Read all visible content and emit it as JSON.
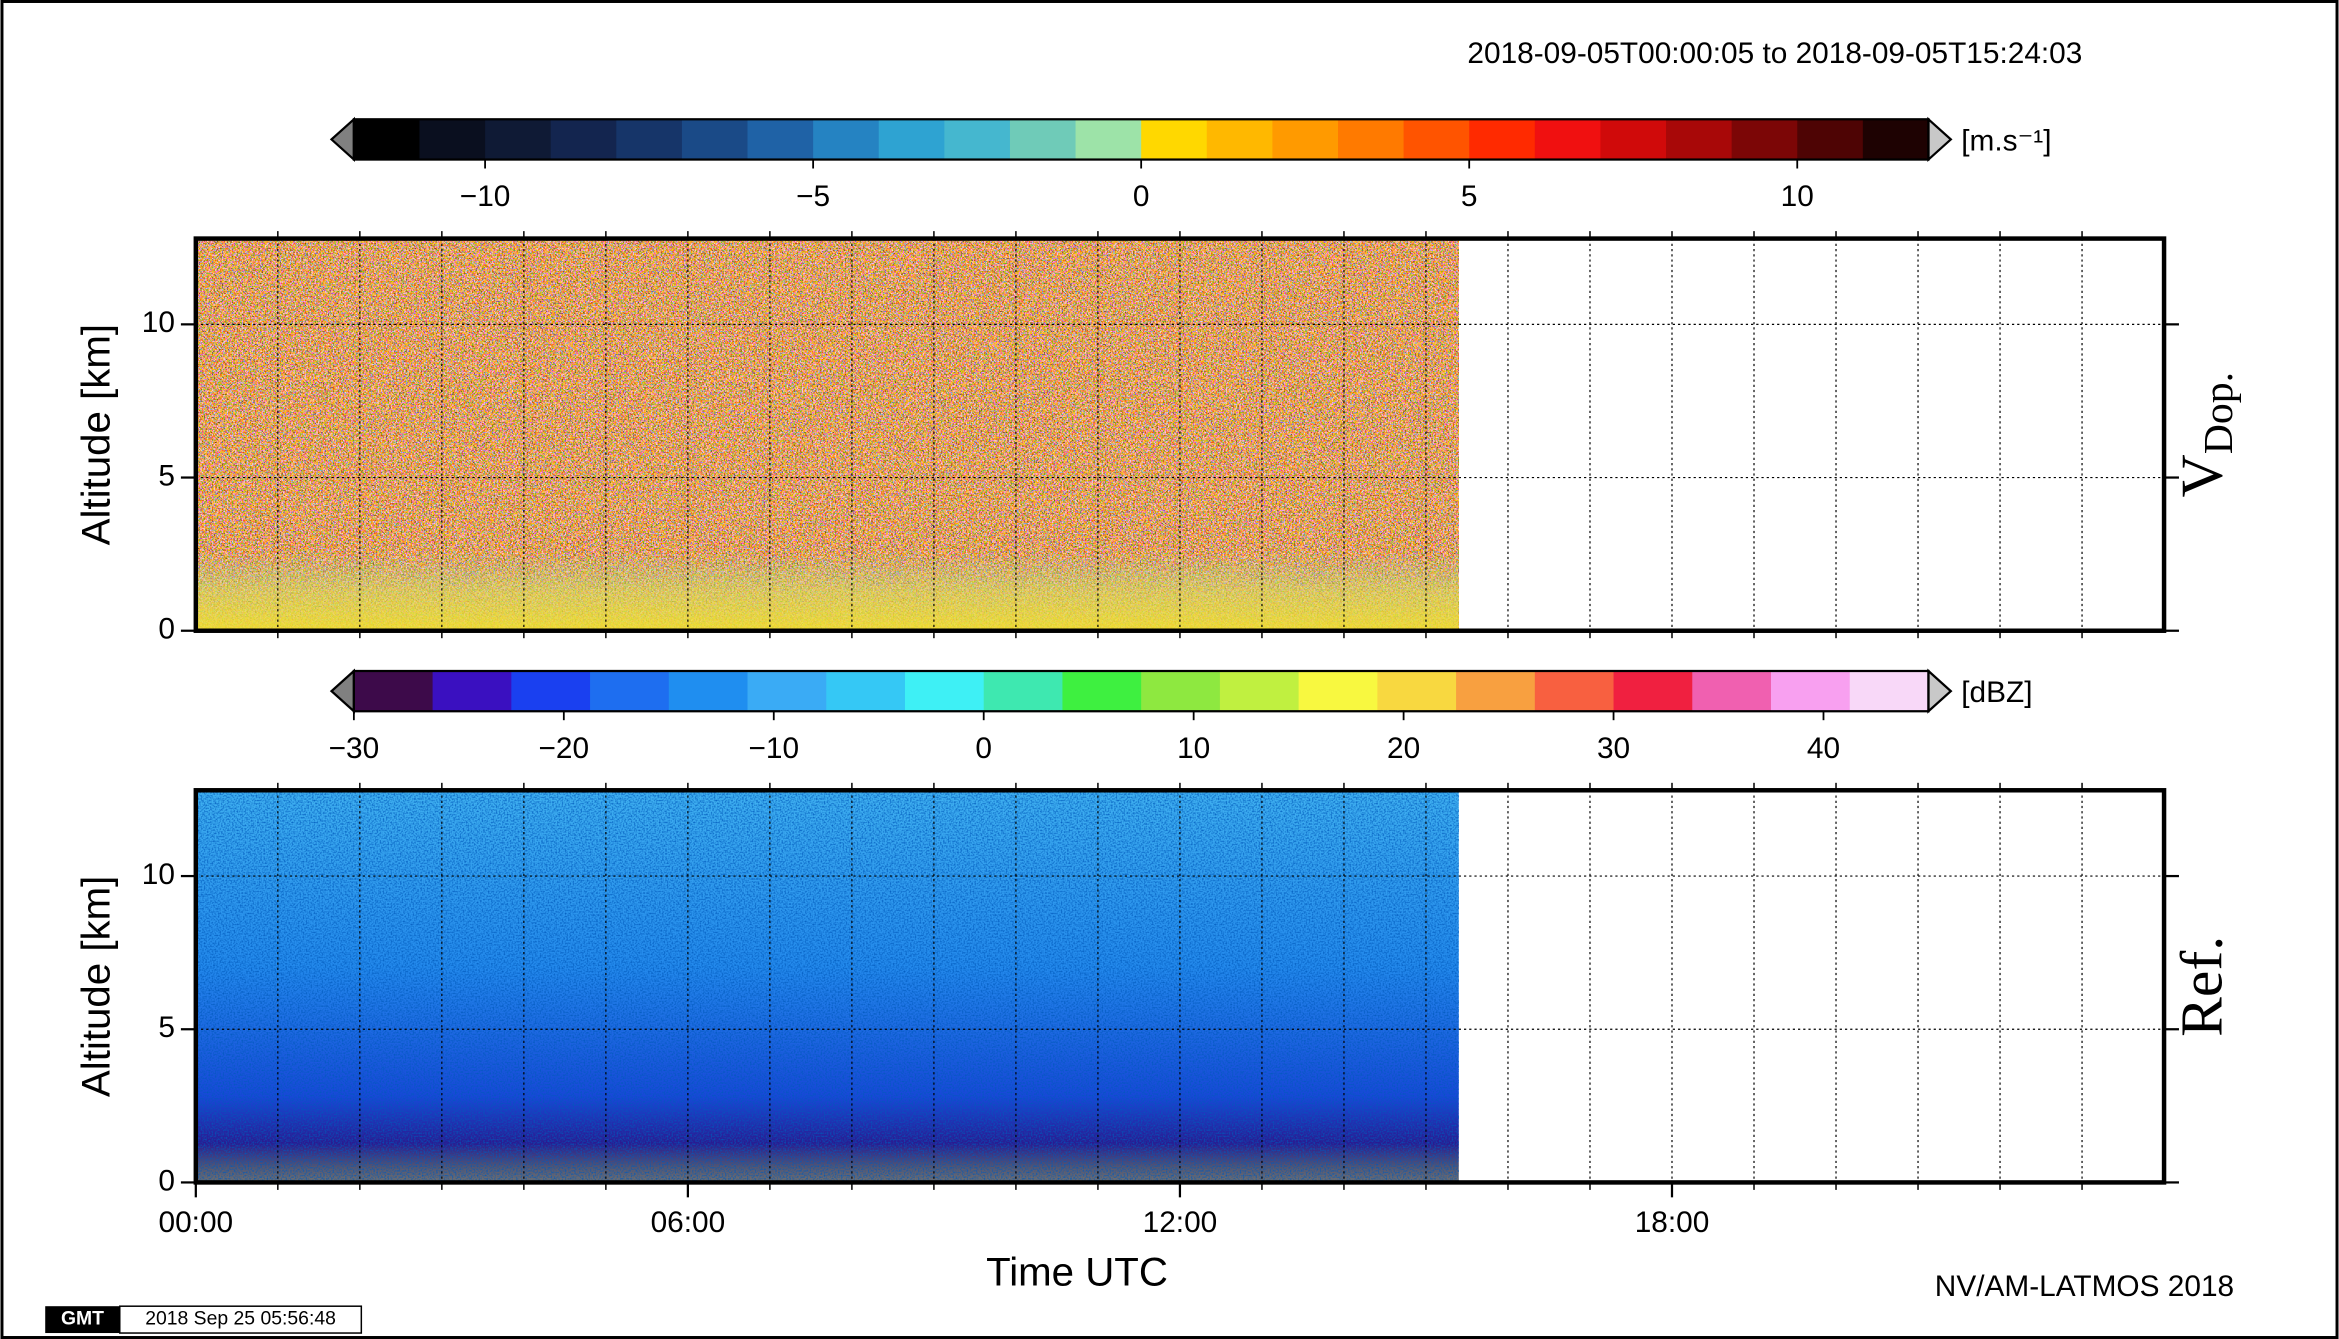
{
  "header": {
    "time_range": "2018-09-05T00:00:05 to 2018-09-05T15:24:03",
    "credit": "NV/AM-LATMOS 2018",
    "gmt_logo": "GMT",
    "timestamp": "2018 Sep 25 05:56:48"
  },
  "chart_data": [
    {
      "type": "heatmap",
      "label": "V",
      "label_sub": "Dop.",
      "ylabel": "Altitude [km]",
      "xlim": [
        0,
        24
      ],
      "ylim": [
        0,
        12.8
      ],
      "yticks": [
        0,
        5,
        10
      ],
      "xminor": [
        1,
        2,
        3,
        4,
        5,
        6,
        7,
        8,
        9,
        10,
        11,
        12,
        13,
        14,
        15,
        16,
        17,
        18,
        19,
        20,
        21,
        22,
        23
      ],
      "data_xlim": [
        0,
        15.4
      ],
      "grid": true,
      "colorbar": {
        "unit": "[m.s⁻¹]",
        "lim": [
          -12,
          12
        ],
        "ticks": [
          {
            "value": -10,
            "label": "−10"
          },
          {
            "value": -5,
            "label": "−5"
          },
          0,
          5,
          10
        ],
        "colors": [
          "#000000",
          "#0a0f1f",
          "#0f1a35",
          "#13254f",
          "#163569",
          "#1a4a87",
          "#1f62a6",
          "#2583c2",
          "#2ea3d2",
          "#45b7cf",
          "#6fcbb8",
          "#9de3a8",
          "#ffd800",
          "#ffb800",
          "#ff9a00",
          "#ff7a00",
          "#ff5400",
          "#ff2a00",
          "#f01010",
          "#d00a0a",
          "#a80808",
          "#7c0606",
          "#4e0404",
          "#1e0202"
        ]
      }
    },
    {
      "type": "heatmap",
      "label": "Ref.",
      "ylabel": "Altitude [km]",
      "xlabel": "Time UTC",
      "xlim": [
        0,
        24
      ],
      "ylim": [
        0,
        12.8
      ],
      "yticks": [
        0,
        5,
        10
      ],
      "xminor": [
        1,
        2,
        3,
        4,
        5,
        6,
        7,
        8,
        9,
        10,
        11,
        12,
        13,
        14,
        15,
        16,
        17,
        18,
        19,
        20,
        21,
        22,
        23
      ],
      "xticks": [
        {
          "value": 0,
          "label": "00:00"
        },
        {
          "value": 6,
          "label": "06:00"
        },
        {
          "value": 12,
          "label": "12:00"
        },
        {
          "value": 18,
          "label": "18:00"
        }
      ],
      "data_xlim": [
        0,
        15.4
      ],
      "grid": true,
      "colorbar": {
        "unit": "[dBZ]",
        "lim": [
          -30,
          45
        ],
        "ticks": [
          {
            "value": -30,
            "label": "−30"
          },
          {
            "value": -20,
            "label": "−20"
          },
          {
            "value": -10,
            "label": "−10"
          },
          0,
          10,
          20,
          30,
          40
        ],
        "colors": [
          "#3d0a4a",
          "#3a10c0",
          "#1a40f0",
          "#1e6ef0",
          "#1f8ef0",
          "#3aabf5",
          "#35c8f5",
          "#3ef0f5",
          "#3ee8b0",
          "#3ef040",
          "#8ee840",
          "#c0f040",
          "#f8f840",
          "#f8d840",
          "#f8a040",
          "#f86040",
          "#f02040",
          "#f060b0",
          "#f8a0f0",
          "#f8d8f8"
        ]
      }
    }
  ]
}
